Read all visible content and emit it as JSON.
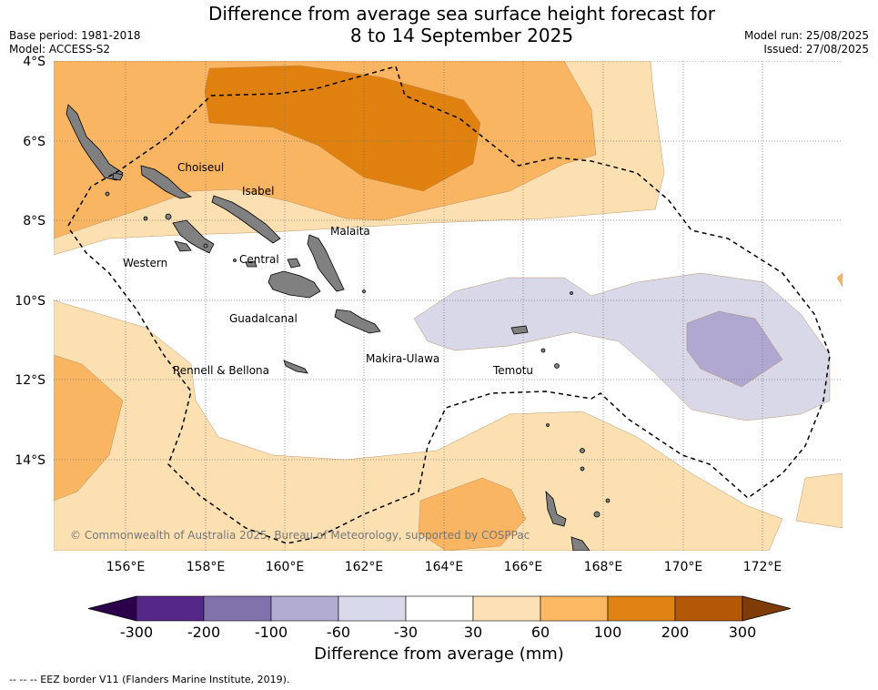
{
  "header": {
    "title_line1": "Difference from average sea surface height forecast for",
    "title_line2": "8 to 14 September 2025",
    "base_period": "Base period: 1981-2018",
    "model": "Model: ACCESS-S2",
    "model_run": "Model run: 25/08/2025",
    "issued": "Issued: 27/08/2025"
  },
  "map": {
    "lat_labels": [
      "4°S",
      "6°S",
      "8°S",
      "10°S",
      "12°S",
      "14°S"
    ],
    "lon_labels": [
      "156°E",
      "158°E",
      "160°E",
      "162°E",
      "164°E",
      "166°E",
      "168°E",
      "170°E",
      "172°E"
    ],
    "province_labels": [
      "Choiseul",
      "Isabel",
      "Malaita",
      "Western",
      "Central",
      "Guadalcanal",
      "Makira-Ulawa",
      "Rennell & Bellona",
      "Temotu"
    ],
    "copyright": "© Commonwealth of Australia 2025, Bureau of Meteorology, supported by COSPPac",
    "colors": {
      "land": "#808080",
      "n60_30": "#d8d8e8",
      "n100_60": "#b0a8d0",
      "p30_60": "#fde0b2",
      "p60_100": "#f9b562",
      "p100_200": "#e0810f",
      "p200_300": "#b35806"
    }
  },
  "colorbar": {
    "ticks": [
      "-300",
      "-200",
      "-100",
      "-60",
      "-30",
      "30",
      "60",
      "100",
      "200",
      "300"
    ],
    "colors": [
      "#2d004b",
      "#542788",
      "#8073ac",
      "#b2abd2",
      "#d8daeb",
      "#ffffff",
      "#fee0b6",
      "#fdb863",
      "#e08214",
      "#b35806",
      "#7f3b08"
    ],
    "label": "Difference from average (mm)"
  },
  "footer": {
    "legend": "--  --  -- EEZ border V11 (Flanders Marine Institute, 2019)."
  }
}
